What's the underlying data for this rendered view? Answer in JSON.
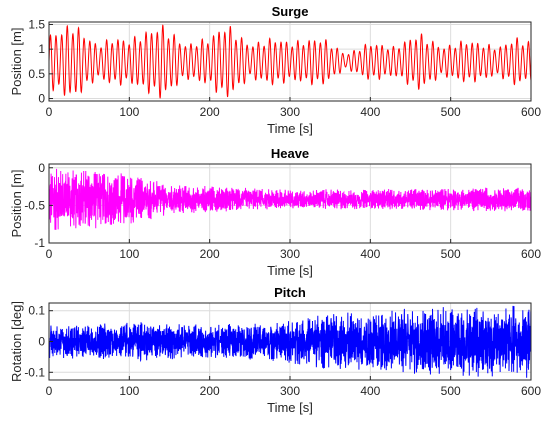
{
  "chart_data": [
    {
      "type": "line",
      "title": "Surge",
      "xlabel": "Time [s]",
      "ylabel": "Position [m]",
      "xlim": [
        0,
        600
      ],
      "ylim": [
        -0.05,
        1.55
      ],
      "xticks": [
        0,
        100,
        200,
        300,
        400,
        500,
        600
      ],
      "yticks": [
        0,
        0.5,
        1,
        1.5
      ],
      "ytick_labels": [
        "0",
        "0.5",
        "1",
        "1.5"
      ],
      "grid": true,
      "series": [
        {
          "color": "#ff0000",
          "mean": 0.75,
          "period_s": 7,
          "envelope_t": [
            0,
            30,
            60,
            80,
            100,
            140,
            170,
            200,
            220,
            250,
            280,
            300,
            340,
            370,
            400,
            430,
            460,
            490,
            520,
            560,
            580,
            600
          ],
          "envelope_amp": [
            0.55,
            0.8,
            0.35,
            0.5,
            0.45,
            0.78,
            0.35,
            0.5,
            0.8,
            0.35,
            0.5,
            0.4,
            0.5,
            0.15,
            0.4,
            0.3,
            0.6,
            0.3,
            0.45,
            0.3,
            0.5,
            0.4
          ]
        }
      ]
    },
    {
      "type": "line",
      "title": "Heave",
      "xlabel": "Time [s]",
      "ylabel": "Position [m]",
      "xlim": [
        0,
        600
      ],
      "ylim": [
        -1,
        0.05
      ],
      "xticks": [
        0,
        100,
        200,
        300,
        400,
        500,
        600
      ],
      "yticks": [
        -1,
        -0.5,
        0
      ],
      "ytick_labels": [
        "-1",
        "-0.5",
        "0"
      ],
      "grid": true,
      "series": [
        {
          "color": "#ff00ff",
          "mean": -0.42,
          "period_s": 1.3,
          "envelope_t": [
            0,
            60,
            110,
            150,
            300,
            500,
            600
          ],
          "envelope_amp": [
            0.42,
            0.4,
            0.32,
            0.2,
            0.13,
            0.15,
            0.17
          ]
        }
      ]
    },
    {
      "type": "line",
      "title": "Pitch",
      "xlabel": "Time [s]",
      "ylabel": "Rotation [deg]",
      "xlim": [
        0,
        600
      ],
      "ylim": [
        -0.125,
        0.125
      ],
      "xticks": [
        0,
        100,
        200,
        300,
        400,
        500,
        600
      ],
      "yticks": [
        -0.1,
        0,
        0.1
      ],
      "ytick_labels": [
        "-0.1",
        "0",
        "0.1"
      ],
      "grid": true,
      "series": [
        {
          "color": "#0000ff",
          "mean": 0,
          "period_s": 1.1,
          "envelope_t": [
            0,
            100,
            200,
            290,
            320,
            400,
            500,
            600
          ],
          "envelope_amp": [
            0.055,
            0.065,
            0.055,
            0.065,
            0.085,
            0.1,
            0.115,
            0.125
          ]
        }
      ]
    }
  ]
}
